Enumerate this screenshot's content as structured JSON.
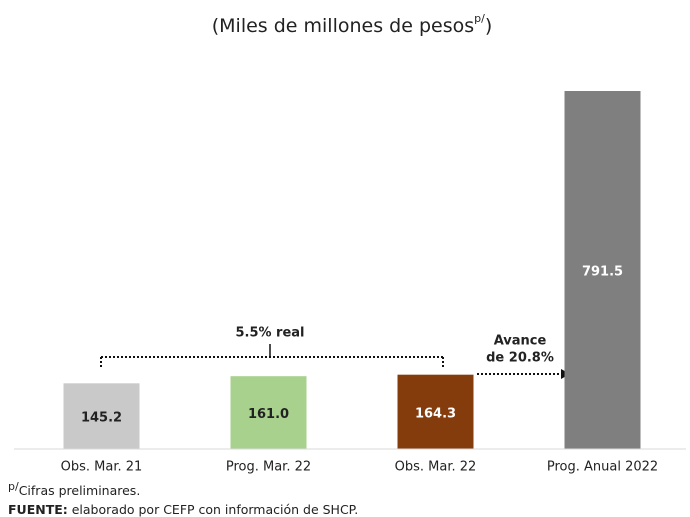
{
  "chart_data": {
    "type": "bar",
    "title": "(Miles de millones de pesos",
    "title_superscript": "p/",
    "title_end": ")",
    "categories": [
      "Obs. Mar. 21",
      "Prog. Mar. 22",
      "Obs. Mar. 22",
      "Prog. Anual 2022"
    ],
    "values": [
      145.2,
      161.0,
      164.3,
      791.5
    ],
    "value_labels": [
      "145.2",
      "161.0",
      "164.3",
      "791.5"
    ],
    "colors": [
      "#c9c9c9",
      "#a9d18e",
      "#843c0c",
      "#7f7f7f"
    ],
    "label_colors": [
      "#222222",
      "#222222",
      "#ffffff",
      "#ffffff"
    ],
    "annotations": [
      "5.5% real",
      "Avance",
      "de 20.8%"
    ],
    "footnote_superscript": "p/",
    "footnote": "Cifras preliminares.",
    "source_label": "FUENTE:",
    "source": " elaborado por CEFP con información de SHCP."
  }
}
